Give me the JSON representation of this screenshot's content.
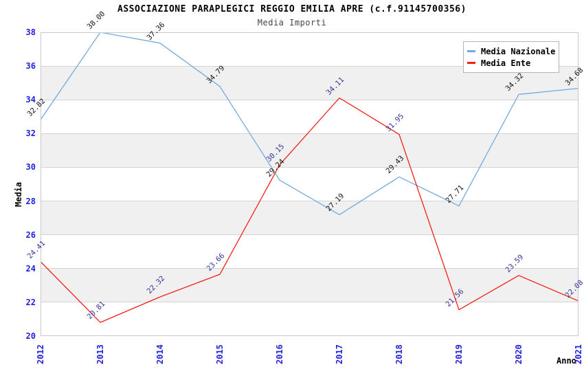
{
  "title": "ASSOCIAZIONE PARAPLEGICI REGGIO EMILIA APRE (c.f.91145700356)",
  "subtitle": "Media Importi",
  "chart_data": {
    "type": "line",
    "title": "ASSOCIAZIONE PARAPLEGICI REGGIO EMILIA APRE (c.f.91145700356)",
    "subtitle": "Media Importi",
    "xlabel": "Anno",
    "ylabel": "Media",
    "x": [
      "2012",
      "2013",
      "2014",
      "2015",
      "2016",
      "2017",
      "2018",
      "2019",
      "2020",
      "2021"
    ],
    "series": [
      {
        "name": "Media Nazionale",
        "color": "#74aade",
        "label_color": "#111111",
        "values": [
          32.82,
          38.0,
          37.36,
          34.79,
          29.24,
          27.19,
          29.43,
          27.71,
          34.32,
          34.68
        ]
      },
      {
        "name": "Media Ente",
        "color": "#f02015",
        "label_color": "#333399",
        "values": [
          24.41,
          20.81,
          22.32,
          23.66,
          30.15,
          34.11,
          31.95,
          21.56,
          23.59,
          22.08
        ]
      }
    ],
    "ylim": [
      20,
      38
    ],
    "ytick_step": 2,
    "grid": true,
    "legend_position": "top-right",
    "band_colors": [
      "#ffffff",
      "#f0f0f0"
    ],
    "axis_tick_color": "#2222dd",
    "value_label_format": "0.00"
  }
}
